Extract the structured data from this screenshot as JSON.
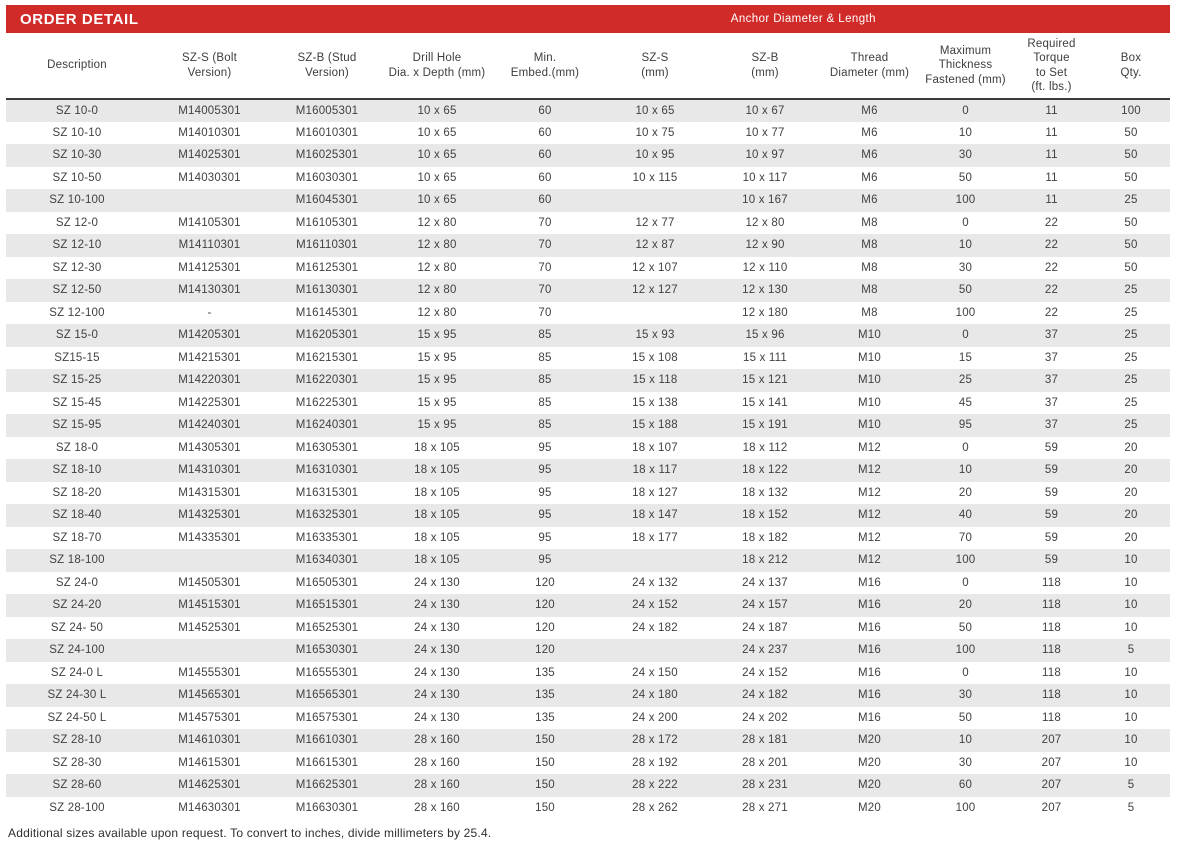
{
  "banner": {
    "title": "ORDER DETAIL",
    "right_label": "Anchor Diameter & Length"
  },
  "colors": {
    "banner_red": "#d02b28",
    "row_stripe_gray": "#e8e8e8",
    "header_rule_dark": "#3a3a3a",
    "text_dark": "#414141"
  },
  "table": {
    "columns": [
      "Description",
      "SZ-S (Bolt\nVersion)",
      "SZ-B (Stud\nVersion)",
      "Drill Hole\nDia. x Depth (mm)",
      "Min.\nEmbed.(mm)",
      "SZ-S\n(mm)",
      "SZ-B\n(mm)",
      "Thread\nDiameter (mm)",
      "Maximum\nThickness\nFastened (mm)",
      "Required\nTorque\nto Set\n(ft. lbs.)",
      "Box\nQty."
    ],
    "rows": [
      [
        "SZ 10-0",
        "M14005301",
        "M16005301",
        "10 x 65",
        "60",
        "10 x 65",
        "10 x 67",
        "M6",
        "0",
        "11",
        "100"
      ],
      [
        "SZ 10-10",
        "M14010301",
        "M16010301",
        "10 x 65",
        "60",
        "10 x 75",
        "10 x 77",
        "M6",
        "10",
        "11",
        "50"
      ],
      [
        "SZ 10-30",
        "M14025301",
        "M16025301",
        "10 x 65",
        "60",
        "10 x 95",
        "10 x 97",
        "M6",
        "30",
        "11",
        "50"
      ],
      [
        "SZ 10-50",
        "M14030301",
        "M16030301",
        "10 x 65",
        "60",
        "10 x 115",
        "10 x 117",
        "M6",
        "50",
        "11",
        "50"
      ],
      [
        "SZ 10-100",
        "",
        "M16045301",
        "10 x 65",
        "60",
        "",
        "10 x 167",
        "M6",
        "100",
        "11",
        "25"
      ],
      [
        "SZ 12-0",
        "M14105301",
        "M16105301",
        "12 x 80",
        "70",
        "12 x 77",
        "12 x 80",
        "M8",
        "0",
        "22",
        "50"
      ],
      [
        "SZ 12-10",
        "M14110301",
        "M16110301",
        "12 x 80",
        "70",
        "12 x 87",
        "12 x 90",
        "M8",
        "10",
        "22",
        "50"
      ],
      [
        "SZ 12-30",
        "M14125301",
        "M16125301",
        "12 x 80",
        "70",
        "12 x 107",
        "12 x 110",
        "M8",
        "30",
        "22",
        "50"
      ],
      [
        "SZ 12-50",
        "M14130301",
        "M16130301",
        "12 x 80",
        "70",
        "12 x 127",
        "12 x 130",
        "M8",
        "50",
        "22",
        "25"
      ],
      [
        "SZ 12-100",
        "-",
        "M16145301",
        "12 x 80",
        "70",
        "",
        "12 x 180",
        "M8",
        "100",
        "22",
        "25"
      ],
      [
        "SZ 15-0",
        "M14205301",
        "M16205301",
        "15 x 95",
        "85",
        "15 x 93",
        "15 x 96",
        "M10",
        "0",
        "37",
        "25"
      ],
      [
        "SZ15-15",
        "M14215301",
        "M16215301",
        "15 x 95",
        "85",
        "15 x 108",
        "15 x 111",
        "M10",
        "15",
        "37",
        "25"
      ],
      [
        "SZ 15-25",
        "M14220301",
        "M16220301",
        "15 x 95",
        "85",
        "15 x 118",
        "15 x 121",
        "M10",
        "25",
        "37",
        "25"
      ],
      [
        "SZ 15-45",
        "M14225301",
        "M16225301",
        "15 x 95",
        "85",
        "15 x 138",
        "15 x 141",
        "M10",
        "45",
        "37",
        "25"
      ],
      [
        "SZ 15-95",
        "M14240301",
        "M16240301",
        "15 x 95",
        "85",
        "15 x 188",
        "15 x 191",
        "M10",
        "95",
        "37",
        "25"
      ],
      [
        "SZ 18-0",
        "M14305301",
        "M16305301",
        "18 x 105",
        "95",
        "18 x 107",
        "18 x 112",
        "M12",
        "0",
        "59",
        "20"
      ],
      [
        "SZ 18-10",
        "M14310301",
        "M16310301",
        "18 x 105",
        "95",
        "18 x 117",
        "18 x 122",
        "M12",
        "10",
        "59",
        "20"
      ],
      [
        "SZ 18-20",
        "M14315301",
        "M16315301",
        "18 x 105",
        "95",
        "18 x 127",
        "18 x 132",
        "M12",
        "20",
        "59",
        "20"
      ],
      [
        "SZ 18-40",
        "M14325301",
        "M16325301",
        "18 x 105",
        "95",
        "18 x 147",
        "18 x 152",
        "M12",
        "40",
        "59",
        "20"
      ],
      [
        "SZ 18-70",
        "M14335301",
        "M16335301",
        "18 x 105",
        "95",
        "18 x 177",
        "18 x 182",
        "M12",
        "70",
        "59",
        "20"
      ],
      [
        "SZ 18-100",
        "",
        "M16340301",
        "18 x 105",
        "95",
        "",
        "18 x 212",
        "M12",
        "100",
        "59",
        "10"
      ],
      [
        "SZ 24-0",
        "M14505301",
        "M16505301",
        "24 x 130",
        "120",
        "24 x 132",
        "24 x 137",
        "M16",
        "0",
        "118",
        "10"
      ],
      [
        "SZ 24-20",
        "M14515301",
        "M16515301",
        "24 x 130",
        "120",
        "24 x 152",
        "24 x 157",
        "M16",
        "20",
        "118",
        "10"
      ],
      [
        "SZ 24- 50",
        "M14525301",
        "M16525301",
        "24 x 130",
        "120",
        "24 x 182",
        "24 x 187",
        "M16",
        "50",
        "118",
        "10"
      ],
      [
        "SZ 24-100",
        "",
        "M16530301",
        "24 x 130",
        "120",
        "",
        "24 x 237",
        "M16",
        "100",
        "118",
        "5"
      ],
      [
        "SZ 24-0 L",
        "M14555301",
        "M16555301",
        "24 x 130",
        "135",
        "24 x 150",
        "24 x 152",
        "M16",
        "0",
        "118",
        "10"
      ],
      [
        "SZ 24-30 L",
        "M14565301",
        "M16565301",
        "24 x 130",
        "135",
        "24 x 180",
        "24 x 182",
        "M16",
        "30",
        "118",
        "10"
      ],
      [
        "SZ 24-50 L",
        "M14575301",
        "M16575301",
        "24 x 130",
        "135",
        "24 x 200",
        "24 x 202",
        "M16",
        "50",
        "118",
        "10"
      ],
      [
        "SZ 28-10",
        "M14610301",
        "M16610301",
        "28 x 160",
        "150",
        "28 x 172",
        "28 x 181",
        "M20",
        "10",
        "207",
        "10"
      ],
      [
        "SZ 28-30",
        "M14615301",
        "M16615301",
        "28 x 160",
        "150",
        "28 x 192",
        "28 x 201",
        "M20",
        "30",
        "207",
        "10"
      ],
      [
        "SZ 28-60",
        "M14625301",
        "M16625301",
        "28 x 160",
        "150",
        "28 x 222",
        "28 x 231",
        "M20",
        "60",
        "207",
        "5"
      ],
      [
        "SZ 28-100",
        "M14630301",
        "M16630301",
        "28 x 160",
        "150",
        "28 x 262",
        "28 x 271",
        "M20",
        "100",
        "207",
        "5"
      ]
    ]
  },
  "footer": {
    "note": "Additional sizes available upon request. To convert to inches, divide millimeters by 25.4."
  }
}
